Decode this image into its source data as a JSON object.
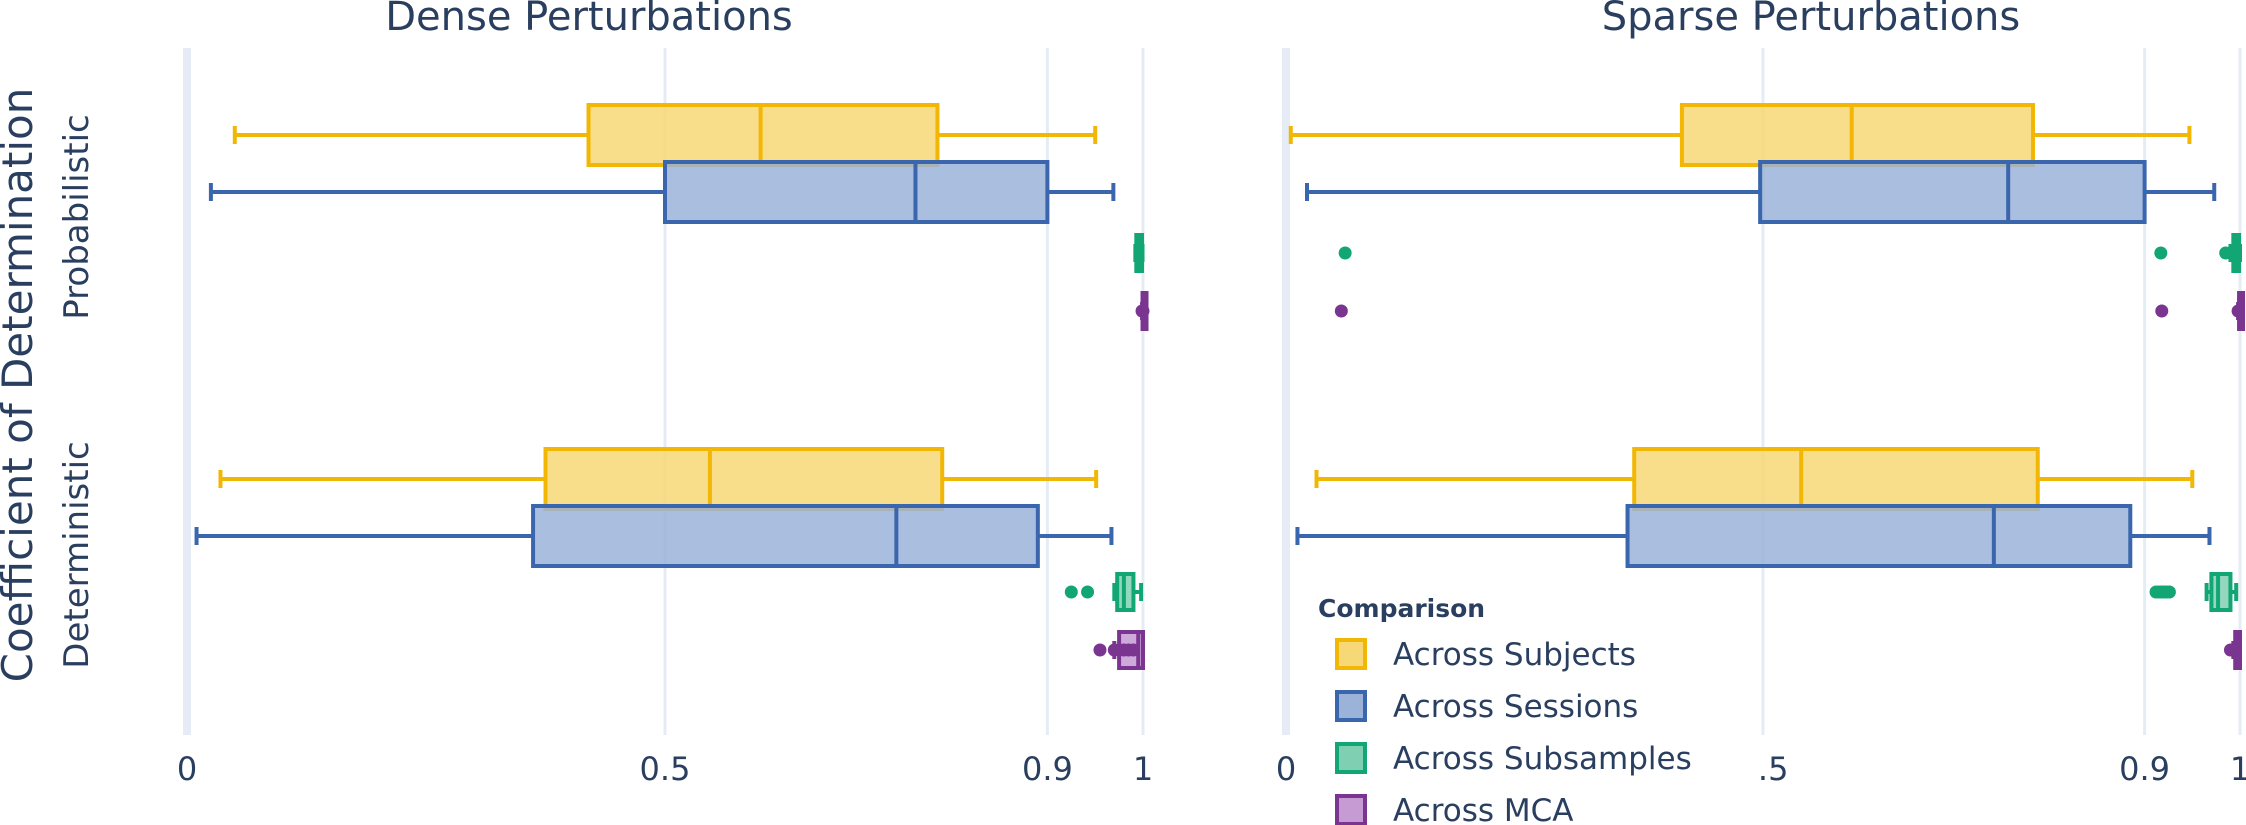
{
  "y_axis_title": "Coefficient of Determination",
  "chart_data": [
    {
      "type": "box",
      "orientation": "horizontal",
      "title": "Dense Perturbations",
      "x_ticks": [
        "0",
        "0.5",
        "0.9",
        "1"
      ],
      "xlim": [
        0,
        1
      ],
      "groups": [
        {
          "label": "Probabilistic",
          "boxes": [
            {
              "series": "Across Subjects",
              "whisker_low": 0.05,
              "q1": 0.42,
              "median": 0.6,
              "q3": 0.785,
              "whisker_high": 0.95,
              "outliers": []
            },
            {
              "series": "Across Sessions",
              "whisker_low": 0.025,
              "q1": 0.5,
              "median": 0.762,
              "q3": 0.9,
              "whisker_high": 0.969,
              "outliers": []
            },
            {
              "series": "Across Subsamples",
              "whisker_low": 0.992,
              "q1": 0.993,
              "median": 0.995,
              "q3": 0.999,
              "whisker_high": 0.9995,
              "outliers": []
            },
            {
              "series": "Across MCA",
              "whisker_low": 0.999,
              "q1": 0.9995,
              "median": 1.0,
              "q3": 1.0,
              "whisker_high": 1.0,
              "outliers": [
                0.999,
                1.0
              ]
            }
          ]
        },
        {
          "label": "Deterministic",
          "boxes": [
            {
              "series": "Across Subjects",
              "whisker_low": 0.035,
              "q1": 0.375,
              "median": 0.547,
              "q3": 0.79,
              "whisker_high": 0.951,
              "outliers": []
            },
            {
              "series": "Across Sessions",
              "whisker_low": 0.01,
              "q1": 0.362,
              "median": 0.742,
              "q3": 0.89,
              "whisker_high": 0.967,
              "outliers": []
            },
            {
              "series": "Across Subsamples",
              "whisker_low": 0.97,
              "q1": 0.973,
              "median": 0.98,
              "q3": 0.99,
              "whisker_high": 0.998,
              "outliers": [
                0.925,
                0.942
              ]
            },
            {
              "series": "Across MCA",
              "whisker_low": 0.97,
              "q1": 0.975,
              "median": 0.995,
              "q3": 1.0,
              "whisker_high": 1.0,
              "outliers": [
                0.955,
                0.97,
                0.975,
                0.98,
                0.985,
                0.99
              ]
            }
          ]
        }
      ]
    },
    {
      "type": "box",
      "orientation": "horizontal",
      "title": "Sparse Perturbations",
      "x_ticks": [
        "0",
        "0.5",
        "0.9",
        "1"
      ],
      "xlim": [
        0,
        1
      ],
      "groups": [
        {
          "label": "Probabilistic",
          "boxes": [
            {
              "series": "Across Subjects",
              "whisker_low": 0.005,
              "q1": 0.415,
              "median": 0.593,
              "q3": 0.783,
              "whisker_high": 0.947,
              "outliers": []
            },
            {
              "series": "Across Sessions",
              "whisker_low": 0.022,
              "q1": 0.497,
              "median": 0.757,
              "q3": 0.9,
              "whisker_high": 0.973,
              "outliers": []
            },
            {
              "series": "Across Subsamples",
              "whisker_low": 0.99,
              "q1": 0.993,
              "median": 0.996,
              "q3": 0.999,
              "whisker_high": 1.0,
              "outliers": [
                0.062,
                0.917,
                0.985,
                0.99
              ]
            },
            {
              "series": "Across MCA",
              "whisker_low": 0.998,
              "q1": 0.999,
              "median": 1.0,
              "q3": 1.0,
              "whisker_high": 1.0,
              "outliers": [
                0.058,
                0.918,
                0.998
              ]
            }
          ]
        },
        {
          "label": "Deterministic",
          "boxes": [
            {
              "series": "Across Subjects",
              "whisker_low": 0.032,
              "q1": 0.365,
              "median": 0.54,
              "q3": 0.788,
              "whisker_high": 0.95,
              "outliers": []
            },
            {
              "series": "Across Sessions",
              "whisker_low": 0.012,
              "q1": 0.358,
              "median": 0.742,
              "q3": 0.885,
              "whisker_high": 0.968,
              "outliers": []
            },
            {
              "series": "Across Subsamples",
              "whisker_low": 0.965,
              "q1": 0.97,
              "median": 0.977,
              "q3": 0.99,
              "whisker_high": 0.996,
              "outliers": [
                0.912,
                0.915,
                0.918,
                0.92,
                0.923,
                0.926
              ]
            },
            {
              "series": "Across MCA",
              "whisker_low": 0.993,
              "q1": 0.995,
              "median": 0.998,
              "q3": 1.0,
              "whisker_high": 1.0,
              "outliers": [
                0.99,
                0.993
              ]
            }
          ]
        }
      ]
    }
  ],
  "series_styles": [
    {
      "name": "Across Subjects",
      "line": "#f2b705",
      "fill": "#f7d876"
    },
    {
      "name": "Across Sessions",
      "line": "#3a66ad",
      "fill": "#9bb3d9"
    },
    {
      "name": "Across Subsamples",
      "line": "#12a675",
      "fill": "#7fd0b3"
    },
    {
      "name": "Across MCA",
      "line": "#7a3591",
      "fill": "#c69bd3"
    }
  ],
  "legend": {
    "title": "Comparison",
    "placement": "bottom-left of right panel",
    "items": [
      "Across Subjects",
      "Across Sessions",
      "Across Subsamples",
      "Across MCA"
    ]
  },
  "colors": {
    "grid": "#e5ecf6",
    "text": "#2a3f5f"
  }
}
